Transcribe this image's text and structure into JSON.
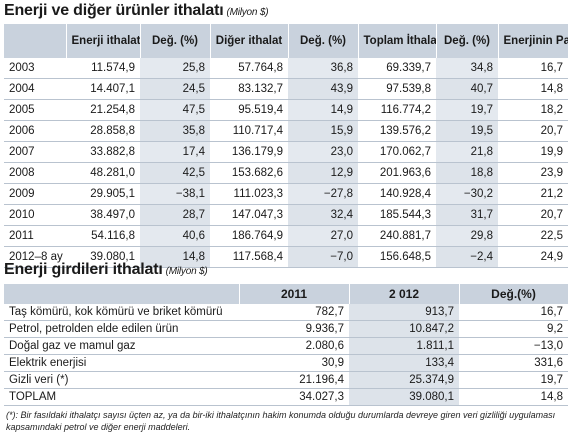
{
  "table1": {
    "title": "Enerji ve diğer ürünler ithalatı",
    "unit": "(Milyon $)",
    "headers": [
      "",
      "Enerji ithalatı",
      "Değ. (%)",
      "Diğer ithalat",
      "Değ. (%)",
      "Toplam İthalat",
      "Değ. (%)",
      "Enerjinin Payı (%)"
    ],
    "rows": [
      [
        "2003",
        "11.574,9",
        "25,8",
        "57.764,8",
        "36,8",
        "69.339,7",
        "34,8",
        "16,7"
      ],
      [
        "2004",
        "14.407,1",
        "24,5",
        "83.132,7",
        "43,9",
        "97.539,8",
        "40,7",
        "14,8"
      ],
      [
        "2005",
        "21.254,8",
        "47,5",
        "95.519,4",
        "14,9",
        "116.774,2",
        "19,7",
        "18,2"
      ],
      [
        "2006",
        "28.858,8",
        "35,8",
        "110.717,4",
        "15,9",
        "139.576,2",
        "19,5",
        "20,7"
      ],
      [
        "2007",
        "33.882,8",
        "17,4",
        "136.179,9",
        "23,0",
        "170.062,7",
        "21,8",
        "19,9"
      ],
      [
        "2008",
        "48.281,0",
        "42,5",
        "153.682,6",
        "12,9",
        "201.963,6",
        "18,8",
        "23,9"
      ],
      [
        "2009",
        "29.905,1",
        "−38,1",
        "111.023,3",
        "−27,8",
        "140.928,4",
        "−30,2",
        "21,2"
      ],
      [
        "2010",
        "38.497,0",
        "28,7",
        "147.047,3",
        "32,4",
        "185.544,3",
        "31,7",
        "20,7"
      ],
      [
        "2011",
        "54.116,8",
        "40,6",
        "186.764,9",
        "27,0",
        "240.881,7",
        "29,8",
        "22,5"
      ],
      [
        "2012–8 ay",
        "39.080,1",
        "14,8",
        "117.568,4",
        "−7,0",
        "156.648,5",
        "−2,4",
        "24,9"
      ]
    ]
  },
  "table2": {
    "title": "Enerji girdileri ithalatı",
    "unit": "(Milyon $)",
    "headers": [
      "",
      "2011",
      "2 012",
      "Değ.(%)"
    ],
    "rows": [
      [
        "Taş kömürü, kok kömürü ve briket kömürü",
        "782,7",
        "913,7",
        "16,7"
      ],
      [
        "Petrol, petrolden elde edilen ürün",
        "9.936,7",
        "10.847,2",
        "9,2"
      ],
      [
        "Doğal gaz ve mamul gaz",
        "2.080,6",
        "1.811,1",
        "−13,0"
      ],
      [
        "Elektrik enerjisi",
        "30,9",
        "133,4",
        "331,6"
      ],
      [
        "Gizli veri (*)",
        "21.196,4",
        "25.374,9",
        "19,7"
      ],
      [
        "TOPLAM",
        "34.027,3",
        "39.080,1",
        "14,8"
      ]
    ]
  },
  "footnote": "(*): Bir fasıldaki ithalatçı sayısı üçten az, ya da bir-iki ithalatçının hakim konumda olduğu durumlarda devreye giren veri gizliliği uygulaması kapsamındaki petrol ve diğer enerji maddeleri."
}
